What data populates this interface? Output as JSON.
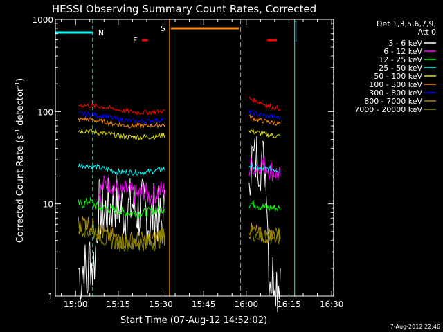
{
  "chart_data": {
    "type": "line",
    "title": "HESSI Observing Summary Count Rates, Corrected",
    "xlabel": "Start Time (07-Aug-12 14:52:02)",
    "ylabel_main": "Corrected Count Rate (s",
    "ylabel_sup1": "-1",
    "ylabel_mid": " detector",
    "ylabel_sup2": "-1",
    "ylabel_end": ")",
    "x_unit": "minutes",
    "xlim": [
      900,
      1990
    ],
    "ylim": [
      1,
      1000
    ],
    "y_scale": "log",
    "x_ticks": [
      {
        "value": 900,
        "label": "15:00"
      },
      {
        "value": 915,
        "label": "15:15"
      },
      {
        "value": 930,
        "label": "15:30"
      },
      {
        "value": 945,
        "label": "15:45"
      },
      {
        "value": 960,
        "label": "16:00"
      },
      {
        "value": 975,
        "label": "16:15"
      },
      {
        "value": 990,
        "label": "16:30"
      }
    ],
    "y_ticks": [
      {
        "value": 1,
        "label": "1"
      },
      {
        "value": 10,
        "label": "10"
      },
      {
        "value": 100,
        "label": "100"
      },
      {
        "value": 1000,
        "label": "1000"
      }
    ],
    "legend_header": [
      "Det 1,3,5,6,7,9,",
      "Att 0"
    ],
    "series": [
      {
        "name": "3 - 6 keV",
        "color": "#ffffff",
        "segments": [
          [
            [
              901,
              2
            ],
            [
              902,
              1.5
            ],
            [
              903,
              2.5
            ],
            [
              904,
              1.2
            ],
            [
              905,
              3
            ],
            [
              906,
              2
            ],
            [
              907,
              3
            ],
            [
              908,
              9
            ],
            [
              910,
              8
            ],
            [
              912,
              9
            ],
            [
              914,
              11
            ],
            [
              916,
              9
            ],
            [
              918,
              8
            ],
            [
              920,
              10
            ],
            [
              922,
              8
            ],
            [
              924,
              9
            ],
            [
              926,
              6
            ],
            [
              928,
              9
            ],
            [
              930,
              6
            ],
            [
              931.5,
              8
            ]
          ],
          [
            [
              961,
              25
            ],
            [
              962,
              30
            ],
            [
              963,
              28
            ],
            [
              964,
              34
            ],
            [
              965,
              30
            ],
            [
              966,
              27
            ],
            [
              967,
              25
            ],
            [
              968,
              2
            ],
            [
              969,
              1.5
            ],
            [
              970,
              2
            ],
            [
              971,
              1.3
            ],
            [
              972,
              2
            ]
          ]
        ]
      },
      {
        "name": "6 - 12 keV",
        "color": "#ff00ff",
        "segments": [
          [
            [
              908,
              13
            ],
            [
              910,
              16
            ],
            [
              912,
              17
            ],
            [
              914,
              15
            ],
            [
              916,
              13
            ],
            [
              918,
              14
            ],
            [
              920,
              13
            ],
            [
              922,
              12
            ],
            [
              924,
              14
            ],
            [
              926,
              12
            ],
            [
              928,
              13
            ],
            [
              930,
              14
            ],
            [
              931.5,
              14
            ]
          ],
          [
            [
              961,
              22
            ],
            [
              962,
              28
            ],
            [
              963,
              24
            ],
            [
              964,
              26
            ],
            [
              965,
              28
            ],
            [
              966,
              27
            ],
            [
              967,
              26
            ],
            [
              968,
              24
            ],
            [
              970,
              22
            ],
            [
              972,
              20
            ]
          ]
        ]
      },
      {
        "name": "12 - 25 keV",
        "color": "#00ff00",
        "segments": [
          [
            [
              901,
              10
            ],
            [
              903,
              10
            ],
            [
              905,
              11
            ],
            [
              907,
              9.5
            ],
            [
              909,
              9
            ],
            [
              911,
              9
            ],
            [
              913,
              8.5
            ],
            [
              915,
              8.5
            ],
            [
              917,
              8
            ],
            [
              919,
              8
            ],
            [
              921,
              8
            ],
            [
              923,
              8
            ],
            [
              925,
              8
            ],
            [
              927,
              8.5
            ],
            [
              929,
              8.5
            ],
            [
              931.5,
              9
            ]
          ],
          [
            [
              961,
              10
            ],
            [
              963,
              10
            ],
            [
              965,
              9.5
            ],
            [
              967,
              9
            ],
            [
              969,
              9
            ],
            [
              971,
              9
            ],
            [
              972,
              8.5
            ]
          ]
        ]
      },
      {
        "name": "25 - 50 keV",
        "color": "#00ffff",
        "segments": [
          [
            [
              901,
              26
            ],
            [
              904,
              26
            ],
            [
              907,
              25
            ],
            [
              910,
              24
            ],
            [
              913,
              23
            ],
            [
              916,
              22
            ],
            [
              919,
              22
            ],
            [
              922,
              22
            ],
            [
              925,
              22
            ],
            [
              928,
              23
            ],
            [
              931.5,
              24
            ]
          ],
          [
            [
              961,
              26
            ],
            [
              963,
              25
            ],
            [
              965,
              24
            ],
            [
              967,
              24
            ],
            [
              969,
              24
            ],
            [
              972,
              23
            ]
          ]
        ]
      },
      {
        "name": "50 - 100 keV",
        "color": "#dddd00",
        "segments": [
          [
            [
              901,
              62
            ],
            [
              904,
              62
            ],
            [
              907,
              60
            ],
            [
              910,
              58
            ],
            [
              913,
              56
            ],
            [
              916,
              54
            ],
            [
              919,
              53
            ],
            [
              922,
              53
            ],
            [
              925,
              53
            ],
            [
              928,
              54
            ],
            [
              931.5,
              56
            ]
          ],
          [
            [
              961,
              63
            ],
            [
              963,
              60
            ],
            [
              965,
              58
            ],
            [
              967,
              56
            ],
            [
              969,
              55
            ],
            [
              972,
              54
            ]
          ]
        ]
      },
      {
        "name": "100 - 300 keV",
        "color": "#ff8800",
        "segments": [
          [
            [
              901,
              83
            ],
            [
              904,
              83
            ],
            [
              907,
              80
            ],
            [
              910,
              78
            ],
            [
              913,
              74
            ],
            [
              916,
              72
            ],
            [
              919,
              70
            ],
            [
              922,
              70
            ],
            [
              925,
              70
            ],
            [
              928,
              71
            ],
            [
              931.5,
              72
            ]
          ],
          [
            [
              961,
              88
            ],
            [
              963,
              84
            ],
            [
              965,
              80
            ],
            [
              967,
              78
            ],
            [
              969,
              76
            ],
            [
              972,
              74
            ]
          ]
        ]
      },
      {
        "name": "300 - 800 keV",
        "color": "#0000ff",
        "segments": [
          [
            [
              901,
              95
            ],
            [
              904,
              94
            ],
            [
              907,
              92
            ],
            [
              910,
              90
            ],
            [
              913,
              86
            ],
            [
              916,
              82
            ],
            [
              919,
              80
            ],
            [
              922,
              79
            ],
            [
              925,
              79
            ],
            [
              928,
              80
            ],
            [
              931.5,
              82
            ]
          ],
          [
            [
              961,
              100
            ],
            [
              963,
              96
            ],
            [
              965,
              92
            ],
            [
              967,
              90
            ],
            [
              969,
              88
            ],
            [
              972,
              86
            ]
          ]
        ]
      },
      {
        "name": "800 - 7000 keV",
        "color": "#aa8800",
        "segments": [
          [
            [
              901,
              6
            ],
            [
              903,
              6.5
            ],
            [
              905,
              6
            ],
            [
              907,
              5.5
            ],
            [
              909,
              5
            ],
            [
              911,
              4.5
            ],
            [
              913,
              4.5
            ],
            [
              915,
              4
            ],
            [
              917,
              4
            ],
            [
              919,
              4
            ],
            [
              921,
              4
            ],
            [
              923,
              4
            ],
            [
              925,
              4
            ],
            [
              927,
              4
            ],
            [
              929,
              4.5
            ],
            [
              931.5,
              5
            ]
          ],
          [
            [
              961,
              5
            ],
            [
              963,
              5
            ],
            [
              965,
              4.5
            ],
            [
              967,
              4.5
            ],
            [
              969,
              4.5
            ],
            [
              972,
              4.5
            ]
          ]
        ]
      },
      {
        "name": "7000 - 20000 keV",
        "color": "#888800",
        "segments": [
          [
            [
              901,
              5.5
            ],
            [
              903,
              5.5
            ],
            [
              905,
              5
            ],
            [
              907,
              5
            ],
            [
              909,
              4.5
            ],
            [
              911,
              4
            ],
            [
              913,
              4
            ],
            [
              915,
              3.8
            ],
            [
              917,
              3.8
            ],
            [
              919,
              3.8
            ],
            [
              921,
              3.8
            ],
            [
              923,
              3.8
            ],
            [
              925,
              3.8
            ],
            [
              927,
              3.8
            ],
            [
              929,
              4
            ],
            [
              931.5,
              4.5
            ]
          ],
          [
            [
              961,
              5
            ],
            [
              963,
              4.8
            ],
            [
              965,
              4.5
            ],
            [
              967,
              4.5
            ],
            [
              969,
              4.5
            ],
            [
              972,
              4.2
            ]
          ]
        ]
      },
      {
        "name": "",
        "color": "#ff0000",
        "segments": [
          [
            [
              901,
              118
            ],
            [
              904,
              117
            ],
            [
              907,
              115
            ],
            [
              910,
              112
            ],
            [
              913,
              108
            ],
            [
              916,
              103
            ],
            [
              919,
              100
            ],
            [
              922,
              98
            ],
            [
              925,
              98
            ],
            [
              928,
              99
            ],
            [
              931.5,
              102
            ]
          ],
          [
            [
              961,
              140
            ],
            [
              963,
              132
            ],
            [
              965,
              125
            ],
            [
              967,
              118
            ],
            [
              969,
              112
            ],
            [
              972,
              108
            ]
          ]
        ]
      }
    ],
    "event_lines": [
      {
        "label": "N",
        "color": "#00ffff",
        "start": 906,
        "end": 977,
        "end_label": ""
      },
      {
        "label": "S",
        "color": "#ff8800",
        "start": 933,
        "end": 958,
        "end_label": ""
      }
    ],
    "flare_marker": {
      "label": "F",
      "color": "#ff0000"
    },
    "timestamp": "7-Aug-2012 22:46"
  }
}
